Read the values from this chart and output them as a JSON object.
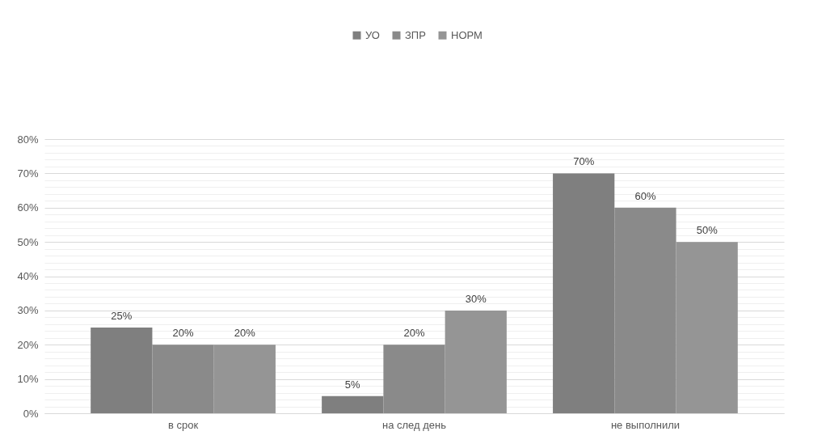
{
  "chart_data": {
    "type": "bar",
    "categories": [
      "в срок",
      "на след день",
      "не выполнили"
    ],
    "series": [
      {
        "name": "УО",
        "color": "#7f7f7f",
        "values": [
          25,
          5,
          70
        ],
        "value_labels": [
          "25%",
          "5%",
          "70%"
        ]
      },
      {
        "name": "ЗПР",
        "color": "#8a8a8a",
        "values": [
          20,
          20,
          60
        ],
        "value_labels": [
          "20%",
          "20%",
          "60%"
        ]
      },
      {
        "name": "НОРМ",
        "color": "#959595",
        "values": [
          20,
          30,
          50
        ],
        "value_labels": [
          "20%",
          "30%",
          "50%"
        ]
      }
    ],
    "ylim": [
      0,
      80
    ],
    "yticks": [
      {
        "value": 0,
        "label": "0%"
      },
      {
        "value": 2,
        "label": null
      },
      {
        "value": 4,
        "label": null
      },
      {
        "value": 6,
        "label": null
      },
      {
        "value": 8,
        "label": null
      },
      {
        "value": 10,
        "label": "10%"
      },
      {
        "value": 12,
        "label": null
      },
      {
        "value": 14,
        "label": null
      },
      {
        "value": 16,
        "label": null
      },
      {
        "value": 18,
        "label": null
      },
      {
        "value": 20,
        "label": "20%"
      },
      {
        "value": 22,
        "label": null
      },
      {
        "value": 24,
        "label": null
      },
      {
        "value": 26,
        "label": null
      },
      {
        "value": 28,
        "label": null
      },
      {
        "value": 30,
        "label": "30%"
      },
      {
        "value": 32,
        "label": null
      },
      {
        "value": 34,
        "label": null
      },
      {
        "value": 36,
        "label": null
      },
      {
        "value": 38,
        "label": null
      },
      {
        "value": 40,
        "label": "40%"
      },
      {
        "value": 42,
        "label": null
      },
      {
        "value": 44,
        "label": null
      },
      {
        "value": 46,
        "label": null
      },
      {
        "value": 48,
        "label": null
      },
      {
        "value": 50,
        "label": "50%"
      },
      {
        "value": 52,
        "label": null
      },
      {
        "value": 54,
        "label": null
      },
      {
        "value": 56,
        "label": null
      },
      {
        "value": 58,
        "label": null
      },
      {
        "value": 60,
        "label": "60%"
      },
      {
        "value": 62,
        "label": null
      },
      {
        "value": 64,
        "label": null
      },
      {
        "value": 66,
        "label": null
      },
      {
        "value": 68,
        "label": null
      },
      {
        "value": 70,
        "label": "70%"
      },
      {
        "value": 72,
        "label": null
      },
      {
        "value": 74,
        "label": null
      },
      {
        "value": 76,
        "label": null
      },
      {
        "value": 78,
        "label": null
      },
      {
        "value": 80,
        "label": "80%"
      }
    ],
    "grid": "y",
    "legend": "top"
  }
}
